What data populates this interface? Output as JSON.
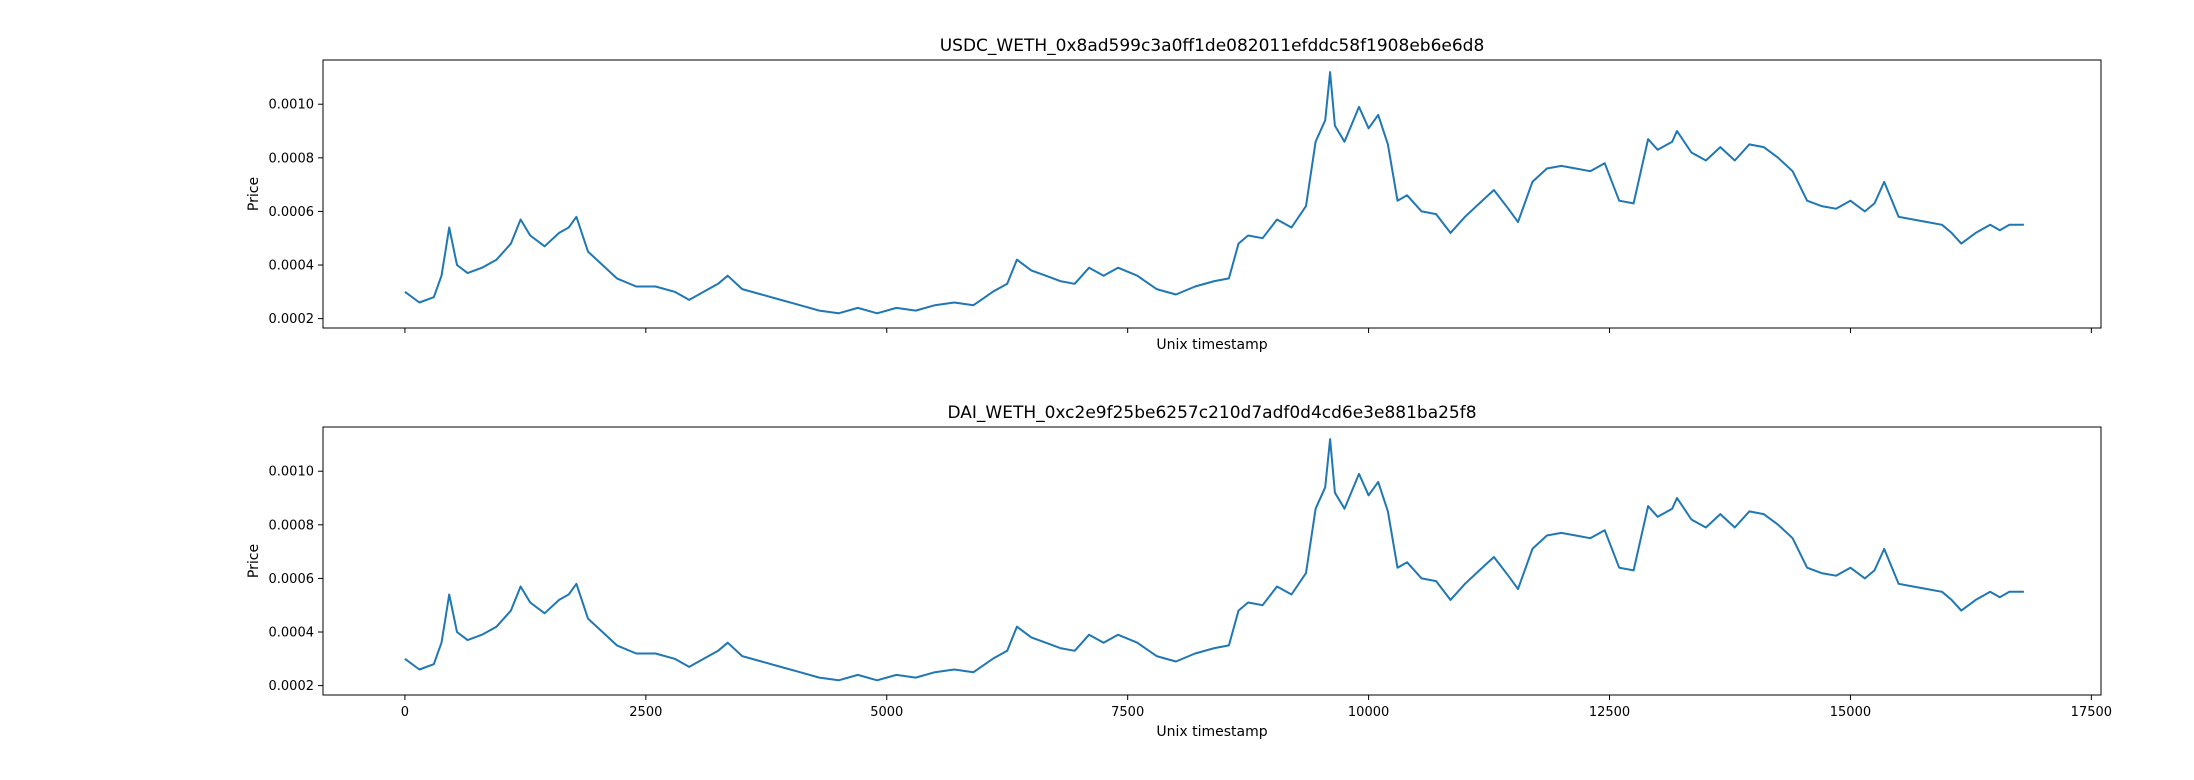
{
  "chart_data": [
    {
      "type": "line",
      "title": "USDC_WETH_0x8ad599c3a0ff1de082011efddc58f1908eb6e6d8",
      "xlabel": "Unix timestamp",
      "ylabel": "Price",
      "xlim": [
        -850,
        17600
      ],
      "ylim": [
        0.000165,
        0.001165
      ],
      "yticks": [
        0.0002,
        0.0004,
        0.0006,
        0.0008,
        0.001
      ],
      "ytick_labels": [
        "0.0002",
        "0.0004",
        "0.0006",
        "0.0008",
        "0.0010"
      ],
      "xticks": [
        0,
        2500,
        5000,
        7500,
        10000,
        12500,
        15000,
        17500
      ],
      "xtick_labels": [],
      "grid": false,
      "color": "#1f77b4",
      "series": [
        {
          "x": [
            0,
            150,
            300,
            380,
            420,
            460,
            540,
            650,
            800,
            950,
            1100,
            1200,
            1300,
            1450,
            1600,
            1700,
            1780,
            1900,
            2050,
            2200,
            2400,
            2600,
            2800,
            2950,
            3100,
            3250,
            3350,
            3500,
            3700,
            3900,
            4100,
            4300,
            4500,
            4700,
            4900,
            5100,
            5300,
            5500,
            5700,
            5900,
            6100,
            6250,
            6350,
            6500,
            6650,
            6800,
            6950,
            7100,
            7250,
            7400,
            7600,
            7800,
            8000,
            8200,
            8400,
            8550,
            8650,
            8750,
            8900,
            9050,
            9200,
            9350,
            9450,
            9550,
            9600,
            9650,
            9750,
            9900,
            10000,
            10100,
            10200,
            10300,
            10400,
            10550,
            10700,
            10850,
            11000,
            11150,
            11300,
            11450,
            11550,
            11700,
            11850,
            12000,
            12150,
            12300,
            12450,
            12600,
            12750,
            12900,
            13000,
            13150,
            13200,
            13350,
            13500,
            13650,
            13800,
            13950,
            14100,
            14250,
            14400,
            14550,
            14700,
            14850,
            15000,
            15150,
            15250,
            15350,
            15500,
            15650,
            15800,
            15950,
            16050,
            16150,
            16300,
            16450,
            16550,
            16650,
            16800
          ],
          "y": [
            0.0003,
            0.00026,
            0.00028,
            0.00036,
            0.00045,
            0.00054,
            0.0004,
            0.00037,
            0.00039,
            0.00042,
            0.00048,
            0.00057,
            0.00051,
            0.00047,
            0.00052,
            0.00054,
            0.00058,
            0.00045,
            0.0004,
            0.00035,
            0.00032,
            0.00032,
            0.0003,
            0.00027,
            0.0003,
            0.00033,
            0.00036,
            0.00031,
            0.00029,
            0.00027,
            0.00025,
            0.00023,
            0.00022,
            0.00024,
            0.00022,
            0.00024,
            0.00023,
            0.00025,
            0.00026,
            0.00025,
            0.0003,
            0.00033,
            0.00042,
            0.00038,
            0.00036,
            0.00034,
            0.00033,
            0.00039,
            0.00036,
            0.00039,
            0.00036,
            0.00031,
            0.00029,
            0.00032,
            0.00034,
            0.00035,
            0.00048,
            0.00051,
            0.0005,
            0.00057,
            0.00054,
            0.00062,
            0.00086,
            0.00094,
            0.00112,
            0.00092,
            0.00086,
            0.00099,
            0.00091,
            0.00096,
            0.00085,
            0.00064,
            0.00066,
            0.0006,
            0.00059,
            0.00052,
            0.00058,
            0.00063,
            0.00068,
            0.00061,
            0.00056,
            0.00071,
            0.00076,
            0.00077,
            0.00076,
            0.00075,
            0.00078,
            0.00064,
            0.00063,
            0.00087,
            0.00083,
            0.00086,
            0.0009,
            0.00082,
            0.00079,
            0.00084,
            0.00079,
            0.00085,
            0.00084,
            0.0008,
            0.00075,
            0.00064,
            0.00062,
            0.00061,
            0.00064,
            0.0006,
            0.00063,
            0.00071,
            0.00058,
            0.00057,
            0.00056,
            0.00055,
            0.00052,
            0.00048,
            0.00052,
            0.00055,
            0.00053,
            0.00055,
            0.00055
          ]
        }
      ]
    },
    {
      "type": "line",
      "title": "DAI_WETH_0xc2e9f25be6257c210d7adf0d4cd6e3e881ba25f8",
      "xlabel": "Unix timestamp",
      "ylabel": "Price",
      "xlim": [
        -850,
        17600
      ],
      "ylim": [
        0.000165,
        0.001165
      ],
      "yticks": [
        0.0002,
        0.0004,
        0.0006,
        0.0008,
        0.001
      ],
      "ytick_labels": [
        "0.0002",
        "0.0004",
        "0.0006",
        "0.0008",
        "0.0010"
      ],
      "xticks": [
        0,
        2500,
        5000,
        7500,
        10000,
        12500,
        15000,
        17500
      ],
      "xtick_labels": [
        "0",
        "2500",
        "5000",
        "7500",
        "10000",
        "12500",
        "15000",
        "17500"
      ],
      "grid": false,
      "color": "#1f77b4",
      "series": [
        {
          "x": [
            0,
            150,
            300,
            380,
            420,
            460,
            540,
            650,
            800,
            950,
            1100,
            1200,
            1300,
            1450,
            1600,
            1700,
            1780,
            1900,
            2050,
            2200,
            2400,
            2600,
            2800,
            2950,
            3100,
            3250,
            3350,
            3500,
            3700,
            3900,
            4100,
            4300,
            4500,
            4700,
            4900,
            5100,
            5300,
            5500,
            5700,
            5900,
            6100,
            6250,
            6350,
            6500,
            6650,
            6800,
            6950,
            7100,
            7250,
            7400,
            7600,
            7800,
            8000,
            8200,
            8400,
            8550,
            8650,
            8750,
            8900,
            9050,
            9200,
            9350,
            9450,
            9550,
            9600,
            9650,
            9750,
            9900,
            10000,
            10100,
            10200,
            10300,
            10400,
            10550,
            10700,
            10850,
            11000,
            11150,
            11300,
            11450,
            11550,
            11700,
            11850,
            12000,
            12150,
            12300,
            12450,
            12600,
            12750,
            12900,
            13000,
            13150,
            13200,
            13350,
            13500,
            13650,
            13800,
            13950,
            14100,
            14250,
            14400,
            14550,
            14700,
            14850,
            15000,
            15150,
            15250,
            15350,
            15500,
            15650,
            15800,
            15950,
            16050,
            16150,
            16300,
            16450,
            16550,
            16650,
            16800
          ],
          "y": [
            0.0003,
            0.00026,
            0.00028,
            0.00036,
            0.00045,
            0.00054,
            0.0004,
            0.00037,
            0.00039,
            0.00042,
            0.00048,
            0.00057,
            0.00051,
            0.00047,
            0.00052,
            0.00054,
            0.00058,
            0.00045,
            0.0004,
            0.00035,
            0.00032,
            0.00032,
            0.0003,
            0.00027,
            0.0003,
            0.00033,
            0.00036,
            0.00031,
            0.00029,
            0.00027,
            0.00025,
            0.00023,
            0.00022,
            0.00024,
            0.00022,
            0.00024,
            0.00023,
            0.00025,
            0.00026,
            0.00025,
            0.0003,
            0.00033,
            0.00042,
            0.00038,
            0.00036,
            0.00034,
            0.00033,
            0.00039,
            0.00036,
            0.00039,
            0.00036,
            0.00031,
            0.00029,
            0.00032,
            0.00034,
            0.00035,
            0.00048,
            0.00051,
            0.0005,
            0.00057,
            0.00054,
            0.00062,
            0.00086,
            0.00094,
            0.00112,
            0.00092,
            0.00086,
            0.00099,
            0.00091,
            0.00096,
            0.00085,
            0.00064,
            0.00066,
            0.0006,
            0.00059,
            0.00052,
            0.00058,
            0.00063,
            0.00068,
            0.00061,
            0.00056,
            0.00071,
            0.00076,
            0.00077,
            0.00076,
            0.00075,
            0.00078,
            0.00064,
            0.00063,
            0.00087,
            0.00083,
            0.00086,
            0.0009,
            0.00082,
            0.00079,
            0.00084,
            0.00079,
            0.00085,
            0.00084,
            0.0008,
            0.00075,
            0.00064,
            0.00062,
            0.00061,
            0.00064,
            0.0006,
            0.00063,
            0.00071,
            0.00058,
            0.00057,
            0.00056,
            0.00055,
            0.00052,
            0.00048,
            0.00052,
            0.00055,
            0.00053,
            0.00055,
            0.00055
          ]
        }
      ]
    }
  ]
}
